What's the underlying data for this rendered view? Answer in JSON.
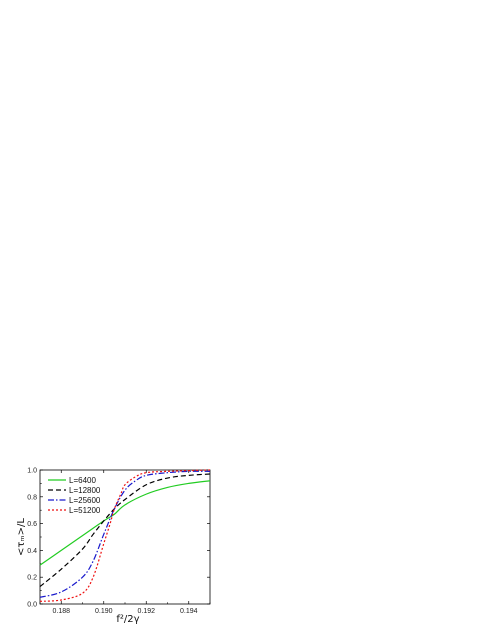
{
  "chart_data": {
    "type": "line",
    "xlim": [
      0.187,
      0.195
    ],
    "ylim": [
      0.0,
      1.0
    ],
    "xticks": [
      {
        "value": 0.188,
        "label": "0.188"
      },
      {
        "value": 0.19,
        "label": "0.190"
      },
      {
        "value": 0.192,
        "label": "0.192"
      },
      {
        "value": 0.194,
        "label": "0.194"
      }
    ],
    "yticks": [
      {
        "value": 0.0,
        "label": "0.0"
      },
      {
        "value": 0.2,
        "label": "0.2"
      },
      {
        "value": 0.4,
        "label": "0.4"
      },
      {
        "value": 0.6,
        "label": "0.6"
      },
      {
        "value": 0.8,
        "label": "0.8"
      },
      {
        "value": 1.0,
        "label": "1.0"
      }
    ],
    "xlabel": "f²/2γ",
    "ylabel": "<τₘ>/L",
    "legend_placement": "top-left",
    "grid": false,
    "crossing": {
      "x": 0.1905,
      "y": 0.71
    },
    "series": [
      {
        "name": "L=6400",
        "color": "#22cc22",
        "dash": "solid",
        "x": [
          0.187,
          0.188,
          0.189,
          0.19,
          0.1905,
          0.191,
          0.192,
          0.193,
          0.194,
          0.195
        ],
        "y": [
          0.29,
          0.4,
          0.51,
          0.62,
          0.67,
          0.74,
          0.82,
          0.87,
          0.9,
          0.92
        ]
      },
      {
        "name": "L=12800",
        "color": "#000000",
        "dash": "dash",
        "x": [
          0.187,
          0.188,
          0.189,
          0.1895,
          0.19,
          0.1905,
          0.191,
          0.192,
          0.193,
          0.194,
          0.195
        ],
        "y": [
          0.13,
          0.26,
          0.41,
          0.52,
          0.62,
          0.71,
          0.78,
          0.89,
          0.94,
          0.96,
          0.97
        ]
      },
      {
        "name": "L=25600",
        "color": "#1a1acc",
        "dash": "dashdot",
        "x": [
          0.187,
          0.188,
          0.189,
          0.1895,
          0.19,
          0.1905,
          0.191,
          0.1915,
          0.192,
          0.193,
          0.194,
          0.195
        ],
        "y": [
          0.05,
          0.09,
          0.2,
          0.32,
          0.52,
          0.71,
          0.85,
          0.92,
          0.96,
          0.98,
          0.99,
          0.99
        ]
      },
      {
        "name": "L=51200",
        "color": "#ee1111",
        "dash": "dot",
        "x": [
          0.187,
          0.188,
          0.189,
          0.1895,
          0.19,
          0.1903,
          0.1905,
          0.1908,
          0.191,
          0.1915,
          0.192,
          0.193,
          0.195
        ],
        "y": [
          0.02,
          0.03,
          0.08,
          0.2,
          0.45,
          0.6,
          0.71,
          0.82,
          0.89,
          0.95,
          0.98,
          0.99,
          1.0
        ]
      }
    ]
  }
}
